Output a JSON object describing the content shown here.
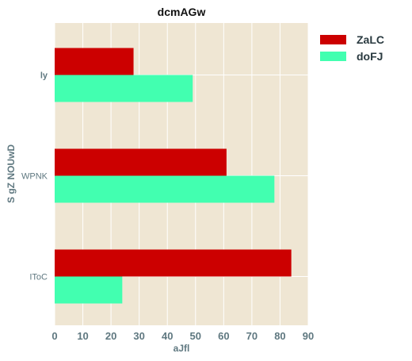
{
  "chart_data": {
    "type": "bar",
    "orientation": "horizontal",
    "title": "dcmAGw",
    "xlabel": "aJfl",
    "ylabel": "S gZ NOUwD",
    "categories": [
      "ly",
      "WPNK",
      "IToC"
    ],
    "series": [
      {
        "name": "ZaLC",
        "values": [
          28,
          61,
          84
        ],
        "color": "#cc0000"
      },
      {
        "name": "doFJ",
        "values": [
          49,
          78,
          24
        ],
        "color": "#42ffb0"
      }
    ],
    "xlim": [
      0,
      90
    ],
    "xticks": [
      "0",
      "10",
      "20",
      "30",
      "40",
      "50",
      "60",
      "70",
      "80",
      "90"
    ],
    "grid": true,
    "legend": "top-right",
    "background": "#efe6d3",
    "grid_color": "#ffffff"
  }
}
